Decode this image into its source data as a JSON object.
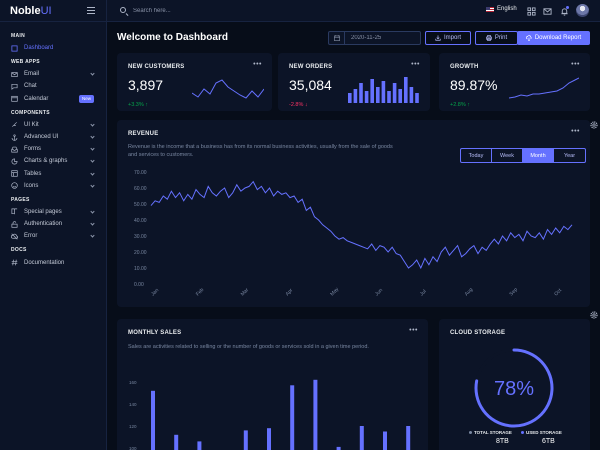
{
  "brand": {
    "name": "Noble",
    "accent": "UI"
  },
  "sidebar": {
    "sections": [
      {
        "title": "MAIN",
        "items": [
          {
            "label": "Dashboard",
            "icon": "box-icon",
            "active": true
          }
        ]
      },
      {
        "title": "WEB APPS",
        "items": [
          {
            "label": "Email",
            "icon": "mail-icon",
            "chevron": true
          },
          {
            "label": "Chat",
            "icon": "message-icon"
          },
          {
            "label": "Calendar",
            "icon": "calendar-icon",
            "badge": "New"
          }
        ]
      },
      {
        "title": "COMPONENTS",
        "items": [
          {
            "label": "UI Kit",
            "icon": "feather-icon",
            "chevron": true
          },
          {
            "label": "Advanced UI",
            "icon": "anchor-icon",
            "chevron": true
          },
          {
            "label": "Forms",
            "icon": "inbox-icon",
            "chevron": true
          },
          {
            "label": "Charts & graphs",
            "icon": "pie-chart-icon",
            "chevron": true
          },
          {
            "label": "Tables",
            "icon": "layout-icon",
            "chevron": true
          },
          {
            "label": "Icons",
            "icon": "smile-icon",
            "chevron": true
          }
        ]
      },
      {
        "title": "PAGES",
        "items": [
          {
            "label": "Special pages",
            "icon": "book-icon",
            "chevron": true
          },
          {
            "label": "Authentication",
            "icon": "unlock-icon",
            "chevron": true
          },
          {
            "label": "Error",
            "icon": "cloud-off-icon",
            "chevron": true
          }
        ]
      },
      {
        "title": "DOCS",
        "items": [
          {
            "label": "Documentation",
            "icon": "hash-icon"
          }
        ]
      }
    ]
  },
  "topbar": {
    "search_placeholder": "Search here...",
    "language": "English"
  },
  "header": {
    "title": "Welcome to Dashboard",
    "date": "2020-11-25",
    "import_label": "Import",
    "print_label": "Print",
    "download_label": "Download Report"
  },
  "stats": [
    {
      "title": "NEW CUSTOMERS",
      "value": "3,897",
      "change": "+3.3%",
      "direction": "up"
    },
    {
      "title": "NEW ORDERS",
      "value": "35,084",
      "change": "-2.8%",
      "direction": "down"
    },
    {
      "title": "GROWTH",
      "value": "89.87%",
      "change": "+2.8%",
      "direction": "up"
    }
  ],
  "revenue": {
    "title": "REVENUE",
    "description": "Revenue is the income that a business has from its normal business activities, usually from the sale of goods and services to customers.",
    "periods": [
      "Today",
      "Week",
      "Month",
      "Year"
    ],
    "active_period": "Month",
    "chart_data": {
      "type": "line",
      "y_ticks": [
        "70.00",
        "60.00",
        "50.00",
        "40.00",
        "30.00",
        "20.00",
        "10.00",
        "0.00"
      ],
      "ylim": [
        0,
        70
      ],
      "x_labels": [
        "Jan",
        "Feb",
        "Mar",
        "Apr",
        "May",
        "Jun",
        "Jul",
        "Aug",
        "Sep",
        "Oct"
      ],
      "values": [
        49,
        52,
        51,
        55,
        53,
        58,
        54,
        57,
        52,
        56,
        53,
        59,
        56,
        54,
        61,
        57,
        55,
        58,
        60,
        54,
        57,
        62,
        58,
        60,
        61,
        64,
        59,
        61,
        57,
        60,
        55,
        58,
        56,
        57,
        54,
        55,
        51,
        53,
        46,
        48,
        42,
        40,
        37,
        35,
        33,
        30,
        28,
        29,
        27,
        26,
        25,
        24,
        23,
        22,
        25,
        21,
        24,
        23,
        20,
        23,
        19,
        18,
        14,
        10,
        12,
        15,
        10,
        16,
        12,
        17,
        14,
        20,
        23,
        18,
        21,
        24,
        17,
        19,
        22,
        24,
        19,
        23,
        21,
        25,
        28,
        25,
        30,
        27,
        32,
        29,
        31,
        27,
        33,
        30,
        29,
        32,
        28,
        34,
        31,
        35,
        32,
        36,
        34,
        37
      ]
    }
  },
  "monthly_sales": {
    "title": "MONTHLY SALES",
    "description": "Sales are activities related to selling or the number of goods or services sold in a given time period.",
    "chart_data": {
      "type": "bar",
      "y_ticks": [
        "160",
        "140",
        "120",
        "100"
      ],
      "ylim": [
        90,
        170
      ],
      "values": [
        152,
        112,
        106,
        98,
        116,
        118,
        157,
        162,
        101,
        120,
        115,
        120
      ]
    }
  },
  "cloud_storage": {
    "title": "CLOUD STORAGE",
    "percent": 78,
    "percent_label": "78%",
    "total_label": "TOTAL STORAGE",
    "total_value": "8TB",
    "used_label": "USED STORAGE",
    "used_value": "6TB"
  },
  "colors": {
    "accent": "#6571ff",
    "success": "#05a34a",
    "danger": "#ff3366",
    "card": "#0c1427",
    "background": "#070d19"
  }
}
